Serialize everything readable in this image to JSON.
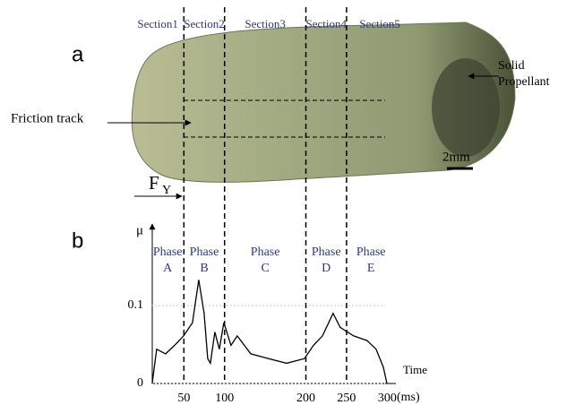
{
  "panel_a": {
    "label": "a",
    "sections": [
      "Section1",
      "Section2",
      "Section3",
      "Section4",
      "Section5"
    ],
    "friction_track": "Friction track",
    "propellant": [
      "Solid",
      "Propellant"
    ],
    "scale": "2mm",
    "force": "F",
    "force_subscript": "Y"
  },
  "chart_data": {
    "type": "line",
    "label": "b",
    "ylabel": "μ",
    "xlabel": "Time",
    "xunit": "(ms)",
    "phases": [
      [
        "Phase",
        "A"
      ],
      [
        "Phase",
        "B"
      ],
      [
        "Phase",
        "C"
      ],
      [
        "Phase",
        "D"
      ],
      [
        "Phase",
        "E"
      ]
    ],
    "x": [
      11,
      16.5,
      27.5,
      38.5,
      49.6,
      60.6,
      68.3,
      74.9,
      79.3,
      82.6,
      88.1,
      93.6,
      99.1,
      107.9,
      115.6,
      132.2,
      154.2,
      176.2,
      198.2,
      209.3,
      220.3,
      233.5,
      242.3,
      258.8,
      275.3,
      286.3,
      295.2,
      299.6
    ],
    "values": [
      0,
      0.044,
      0.038,
      0.049,
      0.061,
      0.078,
      0.133,
      0.09,
      0.032,
      0.026,
      0.066,
      0.044,
      0.078,
      0.049,
      0.061,
      0.038,
      0.032,
      0.026,
      0.032,
      0.049,
      0.061,
      0.09,
      0.072,
      0.061,
      0.055,
      0.044,
      0.021,
      0
    ],
    "color": "#000000",
    "xlim": [
      10,
      310
    ],
    "ylim": [
      0,
      0.2
    ],
    "xticks": [
      50,
      100,
      200,
      250,
      300
    ],
    "yticks": [
      0,
      0.1
    ],
    "grid": true
  }
}
